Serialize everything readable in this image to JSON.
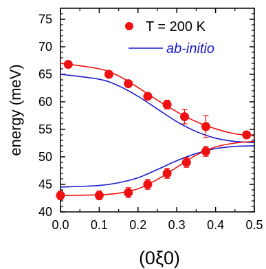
{
  "chart_data": {
    "type": "scatter",
    "xlabel": "(0ξ0)",
    "ylabel": "energy (meV)",
    "xlim": [
      0.0,
      0.5
    ],
    "ylim": [
      40,
      77
    ],
    "x_ticks": [
      "0.0",
      "0.1",
      "0.2",
      "0.3",
      "0.4",
      "0.5"
    ],
    "y_ticks": [
      "40",
      "45",
      "50",
      "55",
      "60",
      "65",
      "70",
      "75"
    ],
    "grid": false,
    "legend_position": "top-right",
    "colors": {
      "measured": "#ee1111",
      "ab_initio": "#1a1acc",
      "axes": "#000000"
    },
    "measured": {
      "name": "T = 200 K",
      "upper": [
        {
          "x": 0.02,
          "y": 66.8,
          "err": 0.6
        },
        {
          "x": 0.125,
          "y": 65.0,
          "err": 0.6
        },
        {
          "x": 0.175,
          "y": 63.3,
          "err": 0.6
        },
        {
          "x": 0.225,
          "y": 61.0,
          "err": 0.6
        },
        {
          "x": 0.275,
          "y": 59.5,
          "err": 0.8
        },
        {
          "x": 0.32,
          "y": 57.3,
          "err": 1.3
        },
        {
          "x": 0.375,
          "y": 55.5,
          "err": 2.0
        },
        {
          "x": 0.48,
          "y": 54.0,
          "err": 0.6
        }
      ],
      "lower": [
        {
          "x": 0.0,
          "y": 43.0,
          "err": 0.8
        },
        {
          "x": 0.1,
          "y": 43.0,
          "err": 0.8
        },
        {
          "x": 0.175,
          "y": 43.5,
          "err": 0.9
        },
        {
          "x": 0.225,
          "y": 45.0,
          "err": 0.9
        },
        {
          "x": 0.275,
          "y": 47.0,
          "err": 0.9
        },
        {
          "x": 0.325,
          "y": 49.0,
          "err": 0.9
        },
        {
          "x": 0.375,
          "y": 51.0,
          "err": 0.9
        }
      ]
    },
    "fit_curves": {
      "upper": {
        "x": [
          0.0,
          0.1,
          0.15,
          0.2,
          0.25,
          0.3,
          0.35,
          0.4,
          0.45,
          0.5
        ],
        "y": [
          67.0,
          66.0,
          64.7,
          62.6,
          60.3,
          58.2,
          56.4,
          55.1,
          54.2,
          53.8
        ]
      },
      "lower": {
        "x": [
          0.0,
          0.1,
          0.15,
          0.2,
          0.25,
          0.3,
          0.35,
          0.4,
          0.45,
          0.5
        ],
        "y": [
          43.0,
          43.1,
          43.4,
          44.2,
          45.9,
          48.1,
          50.3,
          51.8,
          52.5,
          52.8
        ]
      }
    },
    "ab_initio": {
      "name": "ab-initio",
      "upper": {
        "x": [
          0.0,
          0.1,
          0.15,
          0.2,
          0.25,
          0.3,
          0.35,
          0.4,
          0.45,
          0.5
        ],
        "y": [
          65.0,
          64.1,
          62.9,
          61.0,
          58.7,
          56.4,
          54.6,
          53.4,
          52.8,
          52.6
        ]
      },
      "lower": {
        "x": [
          0.0,
          0.1,
          0.15,
          0.2,
          0.25,
          0.3,
          0.35,
          0.4,
          0.45,
          0.5
        ],
        "y": [
          44.5,
          44.8,
          45.3,
          46.2,
          47.7,
          49.3,
          50.6,
          51.5,
          51.9,
          52.0
        ]
      }
    }
  }
}
